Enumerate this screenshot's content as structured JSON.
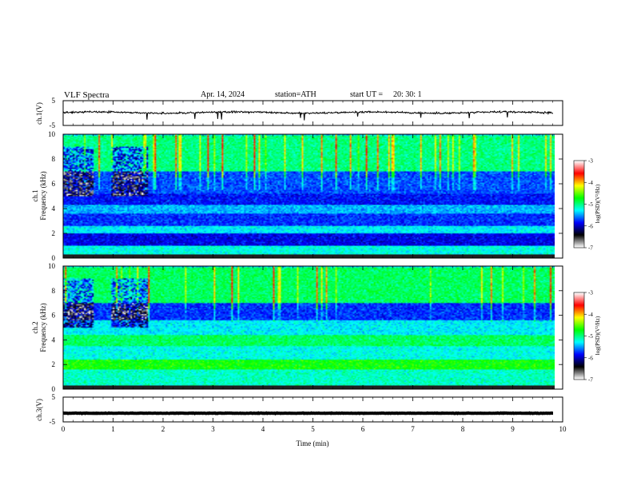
{
  "header": {
    "title": "VLF Spectra",
    "date": "Apr. 14, 2024",
    "station": "station=ATH",
    "start_ut_label": "start UT =",
    "start_ut": "20: 30: 1"
  },
  "colors": {
    "trace": "#000000",
    "colormap": [
      "#ffffff",
      "#000000",
      "#0000ff",
      "#00ffff",
      "#00ff00",
      "#ffff00",
      "#ff0000",
      "#ffffff"
    ]
  },
  "chart_data": [
    {
      "type": "line",
      "ylabel": "ch.1(V)",
      "ylim": [
        -5,
        5
      ],
      "yticks": [
        "5",
        "-5"
      ],
      "xlim": [
        0,
        10
      ],
      "series": [
        {
          "mean": 0.2,
          "noise": 0.5,
          "spikes": "occasional negative"
        }
      ]
    },
    {
      "type": "heatmap",
      "ylabel_top": "ch.1",
      "ylabel": "Frequency (kHz)",
      "ylim": [
        0,
        10
      ],
      "yticks": [
        "10",
        "8",
        "6",
        "4",
        "2",
        "0"
      ],
      "xlim": [
        0,
        10
      ],
      "colorbar": {
        "label": "log(PSD)(V²/Hz)",
        "range": [
          -7,
          -3
        ],
        "ticks": [
          "-3",
          "-4",
          "-5",
          "-6",
          "-7"
        ]
      },
      "bands": [
        {
          "f": [
            0,
            0.3
          ],
          "level": -7
        },
        {
          "f": [
            0.3,
            1.0
          ],
          "level": -5.3
        },
        {
          "f": [
            1.0,
            2.0
          ],
          "level": -6.2
        },
        {
          "f": [
            2.0,
            2.6
          ],
          "level": -5.4
        },
        {
          "f": [
            2.6,
            3.6
          ],
          "level": -6.0
        },
        {
          "f": [
            3.6,
            4.3
          ],
          "level": -5.6
        },
        {
          "f": [
            4.3,
            5.2
          ],
          "level": -6.1
        },
        {
          "f": [
            5.2,
            7.0
          ],
          "level": -5.9
        },
        {
          "f": [
            7.0,
            10.0
          ],
          "level": -5.0
        }
      ]
    },
    {
      "type": "heatmap",
      "ylabel_top": "ch.2",
      "ylabel": "Frequency (kHz)",
      "ylim": [
        0,
        10
      ],
      "yticks": [
        "10",
        "8",
        "6",
        "4",
        "2",
        "0"
      ],
      "xlim": [
        0,
        10
      ],
      "colorbar": {
        "label": "log(PSD)(V²/Hz)",
        "range": [
          -7,
          -3
        ],
        "ticks": [
          "-3",
          "-4",
          "-5",
          "-6",
          "-7"
        ]
      },
      "bands": [
        {
          "f": [
            0,
            0.3
          ],
          "level": -7
        },
        {
          "f": [
            0.3,
            1.6
          ],
          "level": -5.2
        },
        {
          "f": [
            1.6,
            2.4
          ],
          "level": -4.6
        },
        {
          "f": [
            2.4,
            3.5
          ],
          "level": -5.3
        },
        {
          "f": [
            3.5,
            4.4
          ],
          "level": -4.9
        },
        {
          "f": [
            4.4,
            5.6
          ],
          "level": -5.4
        },
        {
          "f": [
            5.6,
            7.0
          ],
          "level": -6.0
        },
        {
          "f": [
            7.0,
            10.0
          ],
          "level": -4.9
        }
      ]
    },
    {
      "type": "line",
      "ylabel": "ch.3(V)",
      "ylim": [
        -5,
        5
      ],
      "yticks": [
        "5",
        "-5"
      ],
      "xlim": [
        0,
        10
      ],
      "xlabel": "Time (min)",
      "xticks": [
        "0",
        "1",
        "2",
        "3",
        "4",
        "5",
        "6",
        "7",
        "8",
        "9",
        "10"
      ],
      "series": [
        {
          "mean": -1.5,
          "noise": 0.15
        }
      ]
    }
  ]
}
